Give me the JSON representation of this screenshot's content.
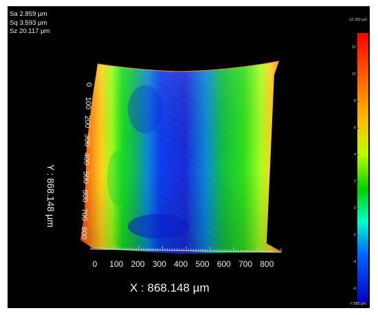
{
  "stats": [
    {
      "label": "Sa",
      "value": "2.859 µm"
    },
    {
      "label": "Sq",
      "value": "3.593 µm"
    },
    {
      "label": "Sz",
      "value": "20.117 µm"
    }
  ],
  "x_axis": {
    "label": "X : 868.148 µm",
    "ticks": [
      "0",
      "100",
      "200",
      "300",
      "400",
      "500",
      "600",
      "700",
      "800"
    ]
  },
  "y_axis": {
    "label": "Y : 868.148 µm",
    "ticks": [
      "0",
      "100",
      "200",
      "300",
      "400",
      "500",
      "600",
      "700",
      "800"
    ]
  },
  "colorbar": {
    "max_label": "12.162 µm",
    "min_label": "-7.955 µm",
    "ticks": [
      "12",
      "10",
      "8",
      "6",
      "4",
      "2",
      "0",
      "-2",
      "-4",
      "-6"
    ],
    "colors": [
      "#ff0000",
      "#ff6a00",
      "#ffbf00",
      "#b8ff00",
      "#00d000",
      "#00ffcc",
      "#0066ff",
      "#0000c8"
    ]
  },
  "surface": {
    "colormap": [
      "#e62b10",
      "#ff7a12",
      "#ffd21a",
      "#9dff1a",
      "#18e01e",
      "#10b85a",
      "#0a8ad8",
      "#0c3cf0",
      "#1a2ad8"
    ]
  }
}
